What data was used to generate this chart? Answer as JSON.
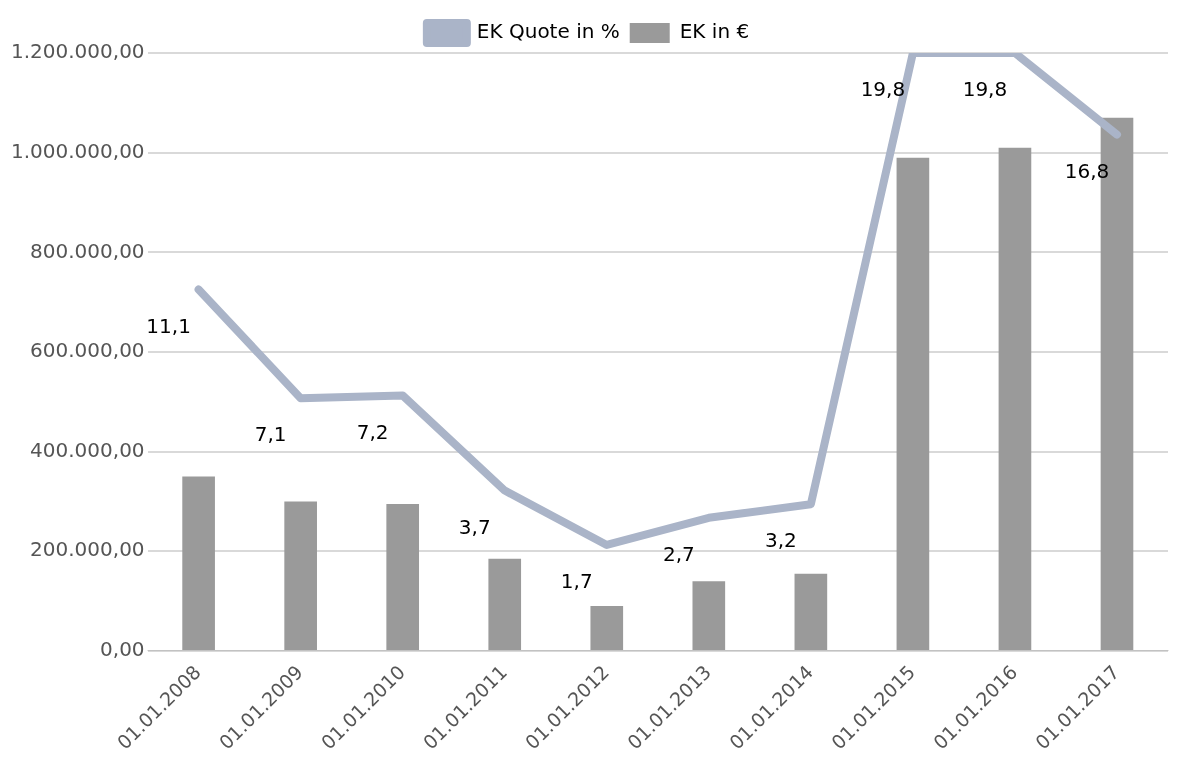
{
  "chart_data": {
    "type": "bar",
    "categories": [
      "01.01.2008",
      "01.01.2009",
      "01.01.2010",
      "01.01.2011",
      "01.01.2012",
      "01.01.2013",
      "01.01.2014",
      "01.01.2015",
      "01.01.2016",
      "01.01.2017"
    ],
    "series": [
      {
        "name": "EK in €",
        "color": "#9a9a9a",
        "values": [
          350000,
          300000,
          295000,
          185000,
          90000,
          140000,
          155000,
          990000,
          1010000,
          1070000
        ]
      },
      {
        "name": "EK Quote in %",
        "type": "line",
        "axis": "y2",
        "color": "#aab4c8",
        "values": [
          11.1,
          7.1,
          7.2,
          3.7,
          1.7,
          2.7,
          3.2,
          19.8,
          19.8,
          16.8
        ],
        "value_labels": [
          "11,1",
          "7,1",
          "7,2",
          "3,7",
          "1,7",
          "2,7",
          "3,2",
          "19,8",
          "19,8",
          "16,8"
        ]
      }
    ],
    "ylim": [
      0,
      1200000
    ],
    "yticks": [
      {
        "value": 0,
        "label": "0,00"
      },
      {
        "value": 200000,
        "label": "200.000,00"
      },
      {
        "value": 400000,
        "label": "400.000,00"
      },
      {
        "value": 600000,
        "label": "600.000,00"
      },
      {
        "value": 800000,
        "label": "800.000,00"
      },
      {
        "value": 1000000,
        "label": "1.000.000,00"
      },
      {
        "value": 1200000,
        "label": "1.200.000,00"
      }
    ],
    "y2lim": [
      -2.2,
      19.8
    ],
    "grid": "y",
    "legend": "top",
    "marker": "none"
  }
}
